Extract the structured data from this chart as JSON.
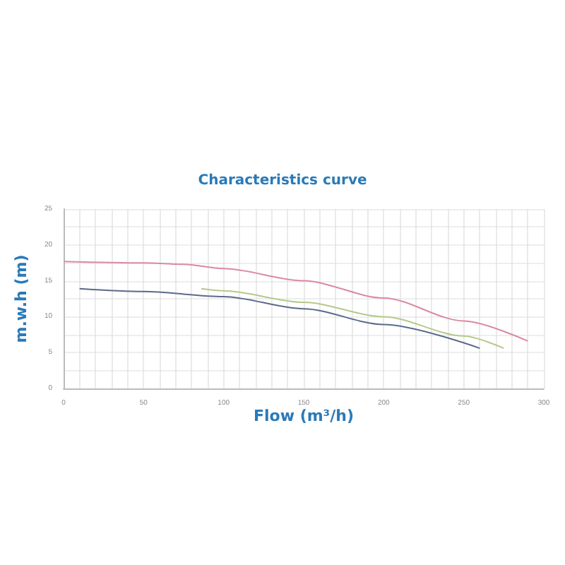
{
  "chart_data": {
    "type": "line",
    "title": "Characteristics curve",
    "xlabel": "Flow (m³/h)",
    "ylabel": "m.w.h (m)",
    "xlim": [
      0,
      300
    ],
    "ylim": [
      0,
      25
    ],
    "xticks": [
      0,
      {
        "value": 10,
        "label": null
      },
      {
        "value": 20,
        "label": null
      },
      {
        "value": 30,
        "label": null
      },
      {
        "value": 40,
        "label": null
      },
      50,
      {
        "value": 60,
        "label": null
      },
      {
        "value": 70,
        "label": null
      },
      {
        "value": 80,
        "label": null
      },
      {
        "value": 90,
        "label": null
      },
      100,
      {
        "value": 110,
        "label": null
      },
      {
        "value": 120,
        "label": null
      },
      {
        "value": 130,
        "label": null
      },
      {
        "value": 140,
        "label": null
      },
      150,
      {
        "value": 160,
        "label": null
      },
      {
        "value": 170,
        "label": null
      },
      {
        "value": 180,
        "label": null
      },
      {
        "value": 190,
        "label": null
      },
      200,
      {
        "value": 210,
        "label": null
      },
      {
        "value": 220,
        "label": null
      },
      {
        "value": 230,
        "label": null
      },
      {
        "value": 240,
        "label": null
      },
      250,
      {
        "value": 260,
        "label": null
      },
      {
        "value": 270,
        "label": null
      },
      {
        "value": 280,
        "label": null
      },
      {
        "value": 290,
        "label": null
      },
      300
    ],
    "yticks": [
      0,
      {
        "value": 2.5,
        "label": null
      },
      5,
      {
        "value": 7.5,
        "label": null
      },
      10,
      {
        "value": 12.5,
        "label": null
      },
      15,
      {
        "value": 17.5,
        "label": null
      },
      20,
      {
        "value": 22.5,
        "label": null
      },
      25
    ],
    "grid": true,
    "marker": "none",
    "line_style": "solid",
    "series": [
      {
        "color": "#5a6a8a",
        "x": [
          10,
          50,
          100,
          150,
          200,
          260
        ],
        "values": [
          13.9,
          13.5,
          12.8,
          11.1,
          8.9,
          5.6
        ]
      },
      {
        "color": "#b5c98a",
        "x": [
          86,
          100,
          150,
          200,
          250,
          275
        ],
        "values": [
          13.9,
          13.6,
          12.0,
          10.0,
          7.3,
          5.6
        ]
      },
      {
        "color": "#d98aa0",
        "x": [
          0,
          50,
          75,
          100,
          150,
          200,
          250,
          290
        ],
        "values": [
          17.7,
          17.5,
          17.3,
          16.7,
          15.0,
          12.6,
          9.4,
          6.6
        ]
      }
    ]
  }
}
